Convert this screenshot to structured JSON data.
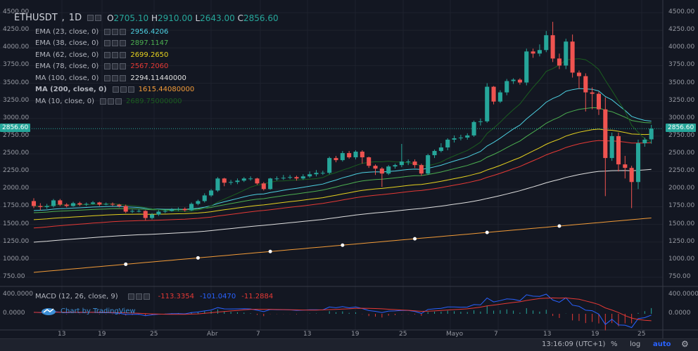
{
  "symbol": "ETHUSDT",
  "interval": "1D",
  "ohlc": {
    "open_label": "O",
    "open": "2705.10",
    "high_label": "H",
    "high": "2910.00",
    "low_label": "L",
    "low": "2643.00",
    "close_label": "C",
    "close": "2856.60"
  },
  "legend": [
    {
      "name": "EMA (23, close, 0)",
      "value": "2956.4206",
      "color": "#4dd0e1",
      "bold": false
    },
    {
      "name": "EMA (38, close, 0)",
      "value": "2897.1147",
      "color": "#4caf50",
      "bold": false
    },
    {
      "name": "EMA (62, close, 0)",
      "value": "2699.2650",
      "color": "#e6d21f",
      "bold": false
    },
    {
      "name": "EMA (78, close, 0)",
      "value": "2567.2060",
      "color": "#e53935",
      "bold": false
    },
    {
      "name": "MA (100, close, 0)",
      "value": "2294.11440000",
      "color": "#e0e0e0",
      "bold": false
    },
    {
      "name": "MA (200, close, 0)",
      "value": "1615.44080000",
      "color": "#f29b38",
      "bold": true
    },
    {
      "name": "MA (10, close, 0)",
      "value": "2689.75000000",
      "color": "#1b5e20",
      "bold": false
    }
  ],
  "macd": {
    "name": "MACD (12, 26, close, 9)",
    "values": [
      "-113.3354",
      "-101.0470",
      "-11.2884"
    ],
    "colors": [
      "#e53935",
      "#2962ff",
      "#e53935"
    ],
    "axis": [
      "400.0000",
      "0.0000"
    ]
  },
  "branding": "Chart by TradingView",
  "price_tag": "2856.60",
  "colors": {
    "up": "#26a69a",
    "down": "#ef5350",
    "background": "#131722",
    "grid": "#1e222d"
  },
  "bottom_bar": {
    "time": "13:16:09 (UTC+1)",
    "percent": "%",
    "log": "log",
    "auto": "auto",
    "settings_icon": "gear-icon"
  },
  "chart_data": {
    "type": "candlestick",
    "ylim": [
      750,
      4500
    ],
    "yticks": [
      "4500.00",
      "4250.00",
      "4000.00",
      "3750.00",
      "3500.00",
      "3250.00",
      "3000.00",
      "2750.00",
      "2500.00",
      "2250.00",
      "2000.00",
      "1750.00",
      "1500.00",
      "1250.00",
      "1000.00",
      "750.00"
    ],
    "xticks": [
      "13",
      "19",
      "25",
      "Abr",
      "7",
      "13",
      "19",
      "25",
      "Mayo",
      "7",
      "13",
      "19",
      "25"
    ],
    "candles": [
      [
        1830,
        1760,
        1870,
        1730
      ],
      [
        1760,
        1745,
        1800,
        1700
      ],
      [
        1745,
        1760,
        1790,
        1720
      ],
      [
        1760,
        1840,
        1860,
        1740
      ],
      [
        1840,
        1780,
        1860,
        1760
      ],
      [
        1780,
        1760,
        1800,
        1740
      ],
      [
        1760,
        1800,
        1820,
        1750
      ],
      [
        1800,
        1780,
        1820,
        1760
      ],
      [
        1780,
        1790,
        1810,
        1760
      ],
      [
        1790,
        1810,
        1830,
        1780
      ],
      [
        1810,
        1780,
        1820,
        1760
      ],
      [
        1780,
        1790,
        1810,
        1770
      ],
      [
        1790,
        1780,
        1810,
        1760
      ],
      [
        1780,
        1760,
        1790,
        1740
      ],
      [
        1760,
        1680,
        1780,
        1660
      ],
      [
        1680,
        1690,
        1710,
        1660
      ],
      [
        1690,
        1690,
        1710,
        1670
      ],
      [
        1690,
        1590,
        1700,
        1560
      ],
      [
        1590,
        1640,
        1660,
        1570
      ],
      [
        1640,
        1680,
        1700,
        1620
      ],
      [
        1680,
        1690,
        1710,
        1660
      ],
      [
        1690,
        1710,
        1730,
        1680
      ],
      [
        1710,
        1720,
        1740,
        1690
      ],
      [
        1720,
        1700,
        1740,
        1680
      ],
      [
        1700,
        1790,
        1810,
        1690
      ],
      [
        1790,
        1830,
        1850,
        1770
      ],
      [
        1830,
        1910,
        1940,
        1810
      ],
      [
        1910,
        1980,
        2000,
        1890
      ],
      [
        1980,
        2150,
        2170,
        1960
      ],
      [
        2150,
        2090,
        2160,
        2040
      ],
      [
        2090,
        2100,
        2130,
        2060
      ],
      [
        2100,
        2120,
        2150,
        2070
      ],
      [
        2120,
        2150,
        2170,
        2100
      ],
      [
        2150,
        2150,
        2180,
        2120
      ],
      [
        2150,
        2080,
        2160,
        2060
      ],
      [
        2080,
        2000,
        2100,
        1980
      ],
      [
        2000,
        2150,
        2160,
        1990
      ],
      [
        2150,
        2150,
        2180,
        2120
      ],
      [
        2150,
        2160,
        2200,
        2130
      ],
      [
        2160,
        2170,
        2200,
        2140
      ],
      [
        2170,
        2150,
        2190,
        2120
      ],
      [
        2150,
        2180,
        2210,
        2130
      ],
      [
        2180,
        2210,
        2250,
        2160
      ],
      [
        2210,
        2230,
        2270,
        2180
      ],
      [
        2230,
        2230,
        2260,
        2200
      ],
      [
        2230,
        2440,
        2460,
        2210
      ],
      [
        2440,
        2410,
        2470,
        2380
      ],
      [
        2410,
        2510,
        2540,
        2390
      ],
      [
        2510,
        2450,
        2540,
        2430
      ],
      [
        2450,
        2530,
        2550,
        2420
      ],
      [
        2530,
        2450,
        2550,
        2360
      ],
      [
        2450,
        2330,
        2460,
        2300
      ],
      [
        2330,
        2290,
        2350,
        2200
      ],
      [
        2290,
        2220,
        2310,
        2030
      ],
      [
        2220,
        2320,
        2340,
        2200
      ],
      [
        2320,
        2340,
        2360,
        2290
      ],
      [
        2340,
        2390,
        2640,
        2310
      ],
      [
        2390,
        2390,
        2420,
        2340
      ],
      [
        2390,
        2340,
        2420,
        2300
      ],
      [
        2340,
        2220,
        2360,
        2190
      ],
      [
        2220,
        2480,
        2500,
        2200
      ],
      [
        2480,
        2540,
        2560,
        2440
      ],
      [
        2540,
        2590,
        2650,
        2520
      ],
      [
        2590,
        2700,
        2720,
        2550
      ],
      [
        2700,
        2720,
        2760,
        2660
      ],
      [
        2720,
        2730,
        2770,
        2690
      ],
      [
        2730,
        2760,
        2790,
        2700
      ],
      [
        2760,
        2950,
        2970,
        2740
      ],
      [
        2950,
        2960,
        3000,
        2900
      ],
      [
        2960,
        3450,
        3500,
        2940
      ],
      [
        3450,
        3240,
        3460,
        3200
      ],
      [
        3240,
        3370,
        3400,
        3220
      ],
      [
        3370,
        3530,
        3560,
        3330
      ],
      [
        3530,
        3550,
        3570,
        3490
      ],
      [
        3550,
        3510,
        3570,
        3480
      ],
      [
        3510,
        3950,
        3990,
        3470
      ],
      [
        3950,
        3920,
        3990,
        3860
      ],
      [
        3920,
        3970,
        4050,
        3880
      ],
      [
        3970,
        4180,
        4240,
        3940
      ],
      [
        4180,
        3850,
        4370,
        3800
      ],
      [
        3850,
        3750,
        3920,
        3700
      ],
      [
        3750,
        4090,
        4130,
        3700
      ],
      [
        4090,
        3650,
        4190,
        3580
      ],
      [
        3650,
        3600,
        3680,
        3420
      ],
      [
        3600,
        3370,
        3640,
        3100
      ],
      [
        3370,
        3350,
        3440,
        3130
      ],
      [
        3350,
        3130,
        3380,
        3050
      ],
      [
        3130,
        2440,
        3300,
        1900
      ],
      [
        2440,
        2750,
        2800,
        2400
      ],
      [
        2750,
        2350,
        2800,
        2250
      ],
      [
        2350,
        2300,
        2470,
        2150
      ],
      [
        2300,
        2100,
        2330,
        1730
      ],
      [
        2100,
        2650,
        2700,
        2000
      ],
      [
        2650,
        2700,
        2730,
        2600
      ],
      [
        2705,
        2856.6,
        2910,
        2643
      ]
    ],
    "ma200_dots": [
      870,
      930,
      1000,
      1110,
      1210,
      1350,
      1510
    ]
  }
}
